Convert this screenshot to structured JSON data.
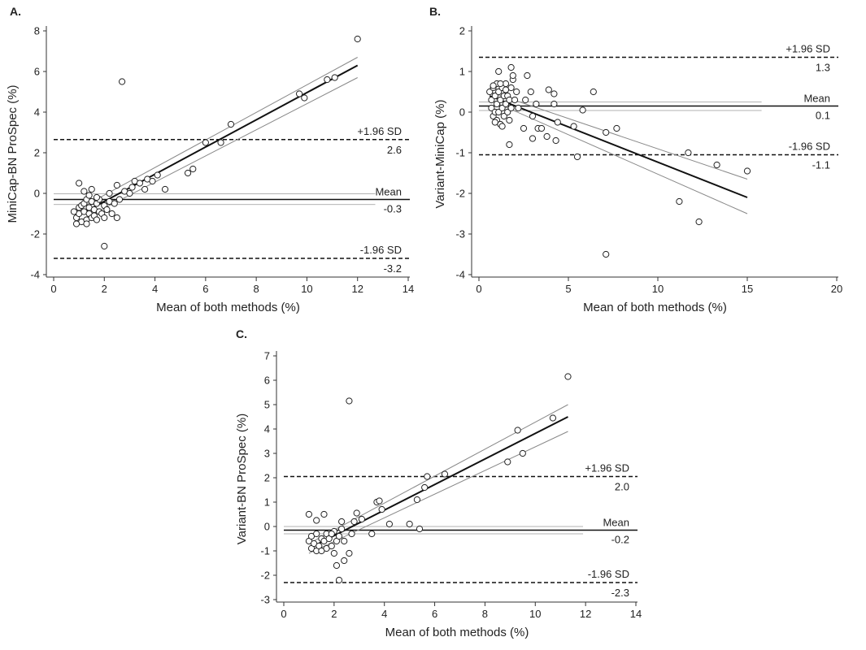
{
  "chart_data": [
    {
      "panel": "A.",
      "type": "scatter",
      "xlabel": "Mean of both methods (%)",
      "ylabel": "MiniCap-BN ProSpec (%)",
      "xlim": [
        0,
        14
      ],
      "ylim": [
        -4,
        8
      ],
      "xticks": [
        0,
        2,
        4,
        6,
        8,
        10,
        12,
        14
      ],
      "yticks": [
        -4,
        -2,
        0,
        2,
        4,
        6,
        8
      ],
      "mean": {
        "label": "Mean",
        "value_label": "-0.3",
        "value": -0.3,
        "ci": [
          -0.55,
          -0.02
        ]
      },
      "upper_loa": {
        "label": "+1.96 SD",
        "value_label": "2.6",
        "value": 2.65
      },
      "lower_loa": {
        "label": "-1.96 SD",
        "value_label": "-3.2",
        "value": -3.2
      },
      "reference_x_end": 12.7,
      "regression": {
        "x": [
          0.8,
          12.0
        ],
        "y": [
          -1.2,
          6.3
        ],
        "ci_upper": [
          -0.9,
          6.7
        ],
        "ci_lower": [
          -1.5,
          5.7
        ]
      },
      "points": [
        [
          0.9,
          -1.2
        ],
        [
          1.0,
          -1.0
        ],
        [
          1.0,
          -0.7
        ],
        [
          1.1,
          -0.6
        ],
        [
          1.1,
          -1.4
        ],
        [
          1.2,
          -0.9
        ],
        [
          1.2,
          -0.5
        ],
        [
          1.3,
          -1.3
        ],
        [
          1.3,
          -0.3
        ],
        [
          1.4,
          -1.0
        ],
        [
          1.4,
          -0.7
        ],
        [
          1.5,
          -1.2
        ],
        [
          1.5,
          -0.4
        ],
        [
          1.6,
          -0.8
        ],
        [
          1.6,
          -1.1
        ],
        [
          1.7,
          -0.5
        ],
        [
          1.7,
          -1.3
        ],
        [
          1.8,
          -0.9
        ],
        [
          1.8,
          -0.3
        ],
        [
          1.9,
          -1.0
        ],
        [
          2.0,
          -0.6
        ],
        [
          2.0,
          -1.2
        ],
        [
          2.1,
          -0.8
        ],
        [
          2.2,
          -0.4
        ],
        [
          2.3,
          -1.0
        ],
        [
          2.4,
          -0.5
        ],
        [
          2.5,
          -1.2
        ],
        [
          1.0,
          0.5
        ],
        [
          1.2,
          0.1
        ],
        [
          1.5,
          0.2
        ],
        [
          0.8,
          -0.9
        ],
        [
          0.9,
          -1.5
        ],
        [
          1.3,
          -1.5
        ],
        [
          1.7,
          -0.2
        ],
        [
          2.0,
          -2.6
        ],
        [
          2.2,
          0.0
        ],
        [
          2.5,
          0.4
        ],
        [
          2.6,
          -0.3
        ],
        [
          2.8,
          0.1
        ],
        [
          3.0,
          0.0
        ],
        [
          3.1,
          0.3
        ],
        [
          3.2,
          0.6
        ],
        [
          3.4,
          0.5
        ],
        [
          3.6,
          0.2
        ],
        [
          3.7,
          0.7
        ],
        [
          3.9,
          0.6
        ],
        [
          4.1,
          0.9
        ],
        [
          4.4,
          0.2
        ],
        [
          5.3,
          1.0
        ],
        [
          5.5,
          1.2
        ],
        [
          2.7,
          5.5
        ],
        [
          6.0,
          2.5
        ],
        [
          6.6,
          2.5
        ],
        [
          7.0,
          3.4
        ],
        [
          9.7,
          4.9
        ],
        [
          9.9,
          4.7
        ],
        [
          10.8,
          5.6
        ],
        [
          11.1,
          5.7
        ],
        [
          12.0,
          7.6
        ],
        [
          1.4,
          -0.1
        ]
      ]
    },
    {
      "panel": "B.",
      "type": "scatter",
      "xlabel": "Mean of both methods (%)",
      "ylabel": "Variant-MiniCap (%)",
      "xlim": [
        0,
        20
      ],
      "ylim": [
        -4,
        2
      ],
      "xticks": [
        0,
        5,
        10,
        15,
        20
      ],
      "yticks": [
        -4,
        -3,
        -2,
        -1,
        0,
        1,
        2
      ],
      "mean": {
        "label": "Mean",
        "value_label": "0.1",
        "value": 0.15,
        "ci": [
          0.04,
          0.25
        ]
      },
      "upper_loa": {
        "label": "+1.96 SD",
        "value_label": "1.3",
        "value": 1.35
      },
      "lower_loa": {
        "label": "-1.96 SD",
        "value_label": "-1.1",
        "value": -1.05
      },
      "reference_x_end": 15.8,
      "regression": {
        "x": [
          0.6,
          15.0
        ],
        "y": [
          0.4,
          -2.1
        ],
        "ci_upper": [
          0.5,
          -1.65
        ],
        "ci_lower": [
          0.3,
          -2.5
        ]
      },
      "points": [
        [
          0.6,
          0.5
        ],
        [
          0.7,
          0.3
        ],
        [
          0.7,
          0.1
        ],
        [
          0.8,
          0.6
        ],
        [
          0.8,
          -0.1
        ],
        [
          0.9,
          0.4
        ],
        [
          0.9,
          0.0
        ],
        [
          1.0,
          0.7
        ],
        [
          1.0,
          0.2
        ],
        [
          1.0,
          -0.2
        ],
        [
          1.1,
          0.5
        ],
        [
          1.1,
          0.0
        ],
        [
          1.2,
          0.3
        ],
        [
          1.2,
          -0.3
        ],
        [
          1.3,
          0.6
        ],
        [
          1.3,
          0.1
        ],
        [
          1.4,
          0.4
        ],
        [
          1.4,
          -0.1
        ],
        [
          1.5,
          0.2
        ],
        [
          1.5,
          0.7
        ],
        [
          1.6,
          0.0
        ],
        [
          1.6,
          0.4
        ],
        [
          1.7,
          -0.2
        ],
        [
          1.7,
          0.3
        ],
        [
          1.8,
          0.6
        ],
        [
          1.8,
          0.1
        ],
        [
          1.9,
          0.8
        ],
        [
          2.0,
          0.3
        ],
        [
          2.1,
          0.5
        ],
        [
          2.2,
          0.1
        ],
        [
          1.1,
          1.0
        ],
        [
          1.8,
          1.1
        ],
        [
          1.9,
          0.9
        ],
        [
          0.8,
          0.65
        ],
        [
          1.2,
          0.7
        ],
        [
          1.5,
          0.55
        ],
        [
          0.9,
          -0.25
        ],
        [
          1.3,
          -0.35
        ],
        [
          2.5,
          -0.4
        ],
        [
          2.6,
          0.3
        ],
        [
          2.7,
          0.9
        ],
        [
          2.9,
          0.5
        ],
        [
          3.0,
          -0.1
        ],
        [
          3.2,
          0.2
        ],
        [
          3.3,
          -0.4
        ],
        [
          3.5,
          -0.4
        ],
        [
          3.8,
          -0.6
        ],
        [
          3.9,
          0.55
        ],
        [
          4.2,
          0.2
        ],
        [
          4.2,
          0.45
        ],
        [
          4.3,
          -0.7
        ],
        [
          4.4,
          -0.25
        ],
        [
          5.3,
          -0.35
        ],
        [
          5.5,
          -1.1
        ],
        [
          5.8,
          0.05
        ],
        [
          6.4,
          0.5
        ],
        [
          7.1,
          -0.5
        ],
        [
          7.7,
          -0.4
        ],
        [
          7.1,
          -3.5
        ],
        [
          11.2,
          -2.2
        ],
        [
          11.7,
          -1.0
        ],
        [
          12.3,
          -2.7
        ],
        [
          13.3,
          -1.3
        ],
        [
          15.0,
          -1.45
        ],
        [
          1.7,
          -0.8
        ],
        [
          3.0,
          -0.65
        ]
      ]
    },
    {
      "panel": "C.",
      "type": "scatter",
      "xlabel": "Mean of both methods (%)",
      "ylabel": "Variant-BN ProSpec (%)",
      "xlim": [
        0,
        14
      ],
      "ylim": [
        -3,
        7
      ],
      "xticks": [
        0,
        2,
        4,
        6,
        8,
        10,
        12,
        14
      ],
      "yticks": [
        -3,
        -2,
        -1,
        0,
        1,
        2,
        3,
        4,
        5,
        6,
        7
      ],
      "mean": {
        "label": "Mean",
        "value_label": "-0.2",
        "value": -0.15,
        "ci": [
          -0.3,
          0.0
        ]
      },
      "upper_loa": {
        "label": "+1.96 SD",
        "value_label": "2.0",
        "value": 2.05
      },
      "lower_loa": {
        "label": "-1.96 SD",
        "value_label": "-2.3",
        "value": -2.3
      },
      "reference_x_end": 11.9,
      "regression": {
        "x": [
          1.0,
          11.3
        ],
        "y": [
          -0.9,
          4.5
        ],
        "ci_upper": [
          -0.7,
          5.0
        ],
        "ci_lower": [
          -1.1,
          3.9
        ]
      },
      "points": [
        [
          1.0,
          -0.6
        ],
        [
          1.1,
          -0.9
        ],
        [
          1.1,
          -0.4
        ],
        [
          1.2,
          -0.7
        ],
        [
          1.3,
          -1.0
        ],
        [
          1.3,
          -0.3
        ],
        [
          1.4,
          -0.8
        ],
        [
          1.5,
          -0.5
        ],
        [
          1.5,
          -1.0
        ],
        [
          1.6,
          -0.6
        ],
        [
          1.7,
          -0.3
        ],
        [
          1.7,
          -0.9
        ],
        [
          1.8,
          -0.5
        ],
        [
          1.9,
          -0.8
        ],
        [
          2.0,
          -0.2
        ],
        [
          2.0,
          -1.1
        ],
        [
          2.1,
          -0.6
        ],
        [
          2.2,
          -0.4
        ],
        [
          2.3,
          -0.1
        ],
        [
          2.4,
          -0.6
        ],
        [
          1.0,
          0.5
        ],
        [
          1.3,
          0.25
        ],
        [
          1.6,
          0.5
        ],
        [
          2.1,
          -1.6
        ],
        [
          2.2,
          -2.2
        ],
        [
          2.4,
          -1.4
        ],
        [
          2.6,
          -1.1
        ],
        [
          2.6,
          5.15
        ],
        [
          2.7,
          -0.3
        ],
        [
          2.8,
          0.2
        ],
        [
          2.9,
          0.55
        ],
        [
          3.1,
          0.3
        ],
        [
          3.5,
          -0.3
        ],
        [
          3.7,
          1.0
        ],
        [
          3.8,
          1.05
        ],
        [
          3.9,
          0.7
        ],
        [
          4.2,
          0.1
        ],
        [
          5.0,
          0.1
        ],
        [
          5.3,
          1.1
        ],
        [
          5.4,
          -0.1
        ],
        [
          5.6,
          1.6
        ],
        [
          5.7,
          2.05
        ],
        [
          6.4,
          2.15
        ],
        [
          8.9,
          2.65
        ],
        [
          9.3,
          3.95
        ],
        [
          9.5,
          3.0
        ],
        [
          10.7,
          4.45
        ],
        [
          11.3,
          6.15
        ],
        [
          2.3,
          0.2
        ],
        [
          1.9,
          -0.3
        ]
      ]
    }
  ]
}
